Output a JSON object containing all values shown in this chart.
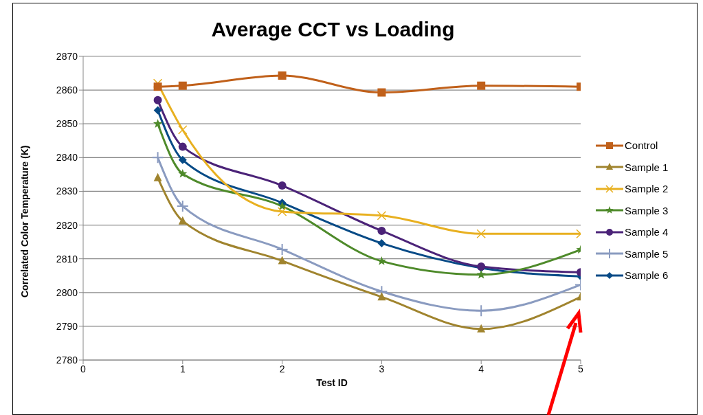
{
  "chart_data": {
    "type": "line",
    "title": "Average CCT vs Loading",
    "xlabel": "Test ID",
    "ylabel": "Correlated Color Temperature (K)",
    "x": [
      0.75,
      1,
      2,
      3,
      4,
      5
    ],
    "series": [
      {
        "name": "Control",
        "color": "#c0601a",
        "marker": "square",
        "values": [
          2861,
          2861.3,
          2864.3,
          2859.3,
          2861.3,
          2861
        ]
      },
      {
        "name": "Sample 1",
        "color": "#a0842e",
        "marker": "triangle",
        "values": [
          2834,
          2821.2,
          2809.4,
          2798.7,
          2789.2,
          2798.7
        ]
      },
      {
        "name": "Sample 2",
        "color": "#e8b020",
        "marker": "cross",
        "values": [
          2862,
          2848.2,
          2824,
          2822.8,
          2817.4,
          2817.4
        ]
      },
      {
        "name": "Sample 3",
        "color": "#4e8a2a",
        "marker": "star",
        "values": [
          2850,
          2835.2,
          2825.6,
          2809.3,
          2805.3,
          2812.7
        ]
      },
      {
        "name": "Sample 4",
        "color": "#4b2378",
        "marker": "circle",
        "values": [
          2857,
          2843.2,
          2831.7,
          2818.3,
          2807.7,
          2806
        ]
      },
      {
        "name": "Sample 5",
        "color": "#8a9bc0",
        "marker": "plus",
        "values": [
          2840,
          2825.6,
          2812.8,
          2800.3,
          2794.6,
          2802.3
        ]
      },
      {
        "name": "Sample 6",
        "color": "#064a86",
        "marker": "diamond",
        "values": [
          2854,
          2839.3,
          2826.6,
          2814.6,
          2807.3,
          2804.8
        ]
      }
    ],
    "xlim": [
      0,
      5
    ],
    "xticks": [
      0,
      1,
      2,
      3,
      4,
      5
    ],
    "ylim": [
      2780,
      2870
    ],
    "yticks": [
      2780,
      2790,
      2800,
      2810,
      2820,
      2830,
      2840,
      2850,
      2860,
      2870
    ],
    "grid": "y",
    "legend": "right",
    "line_style": "solid"
  }
}
